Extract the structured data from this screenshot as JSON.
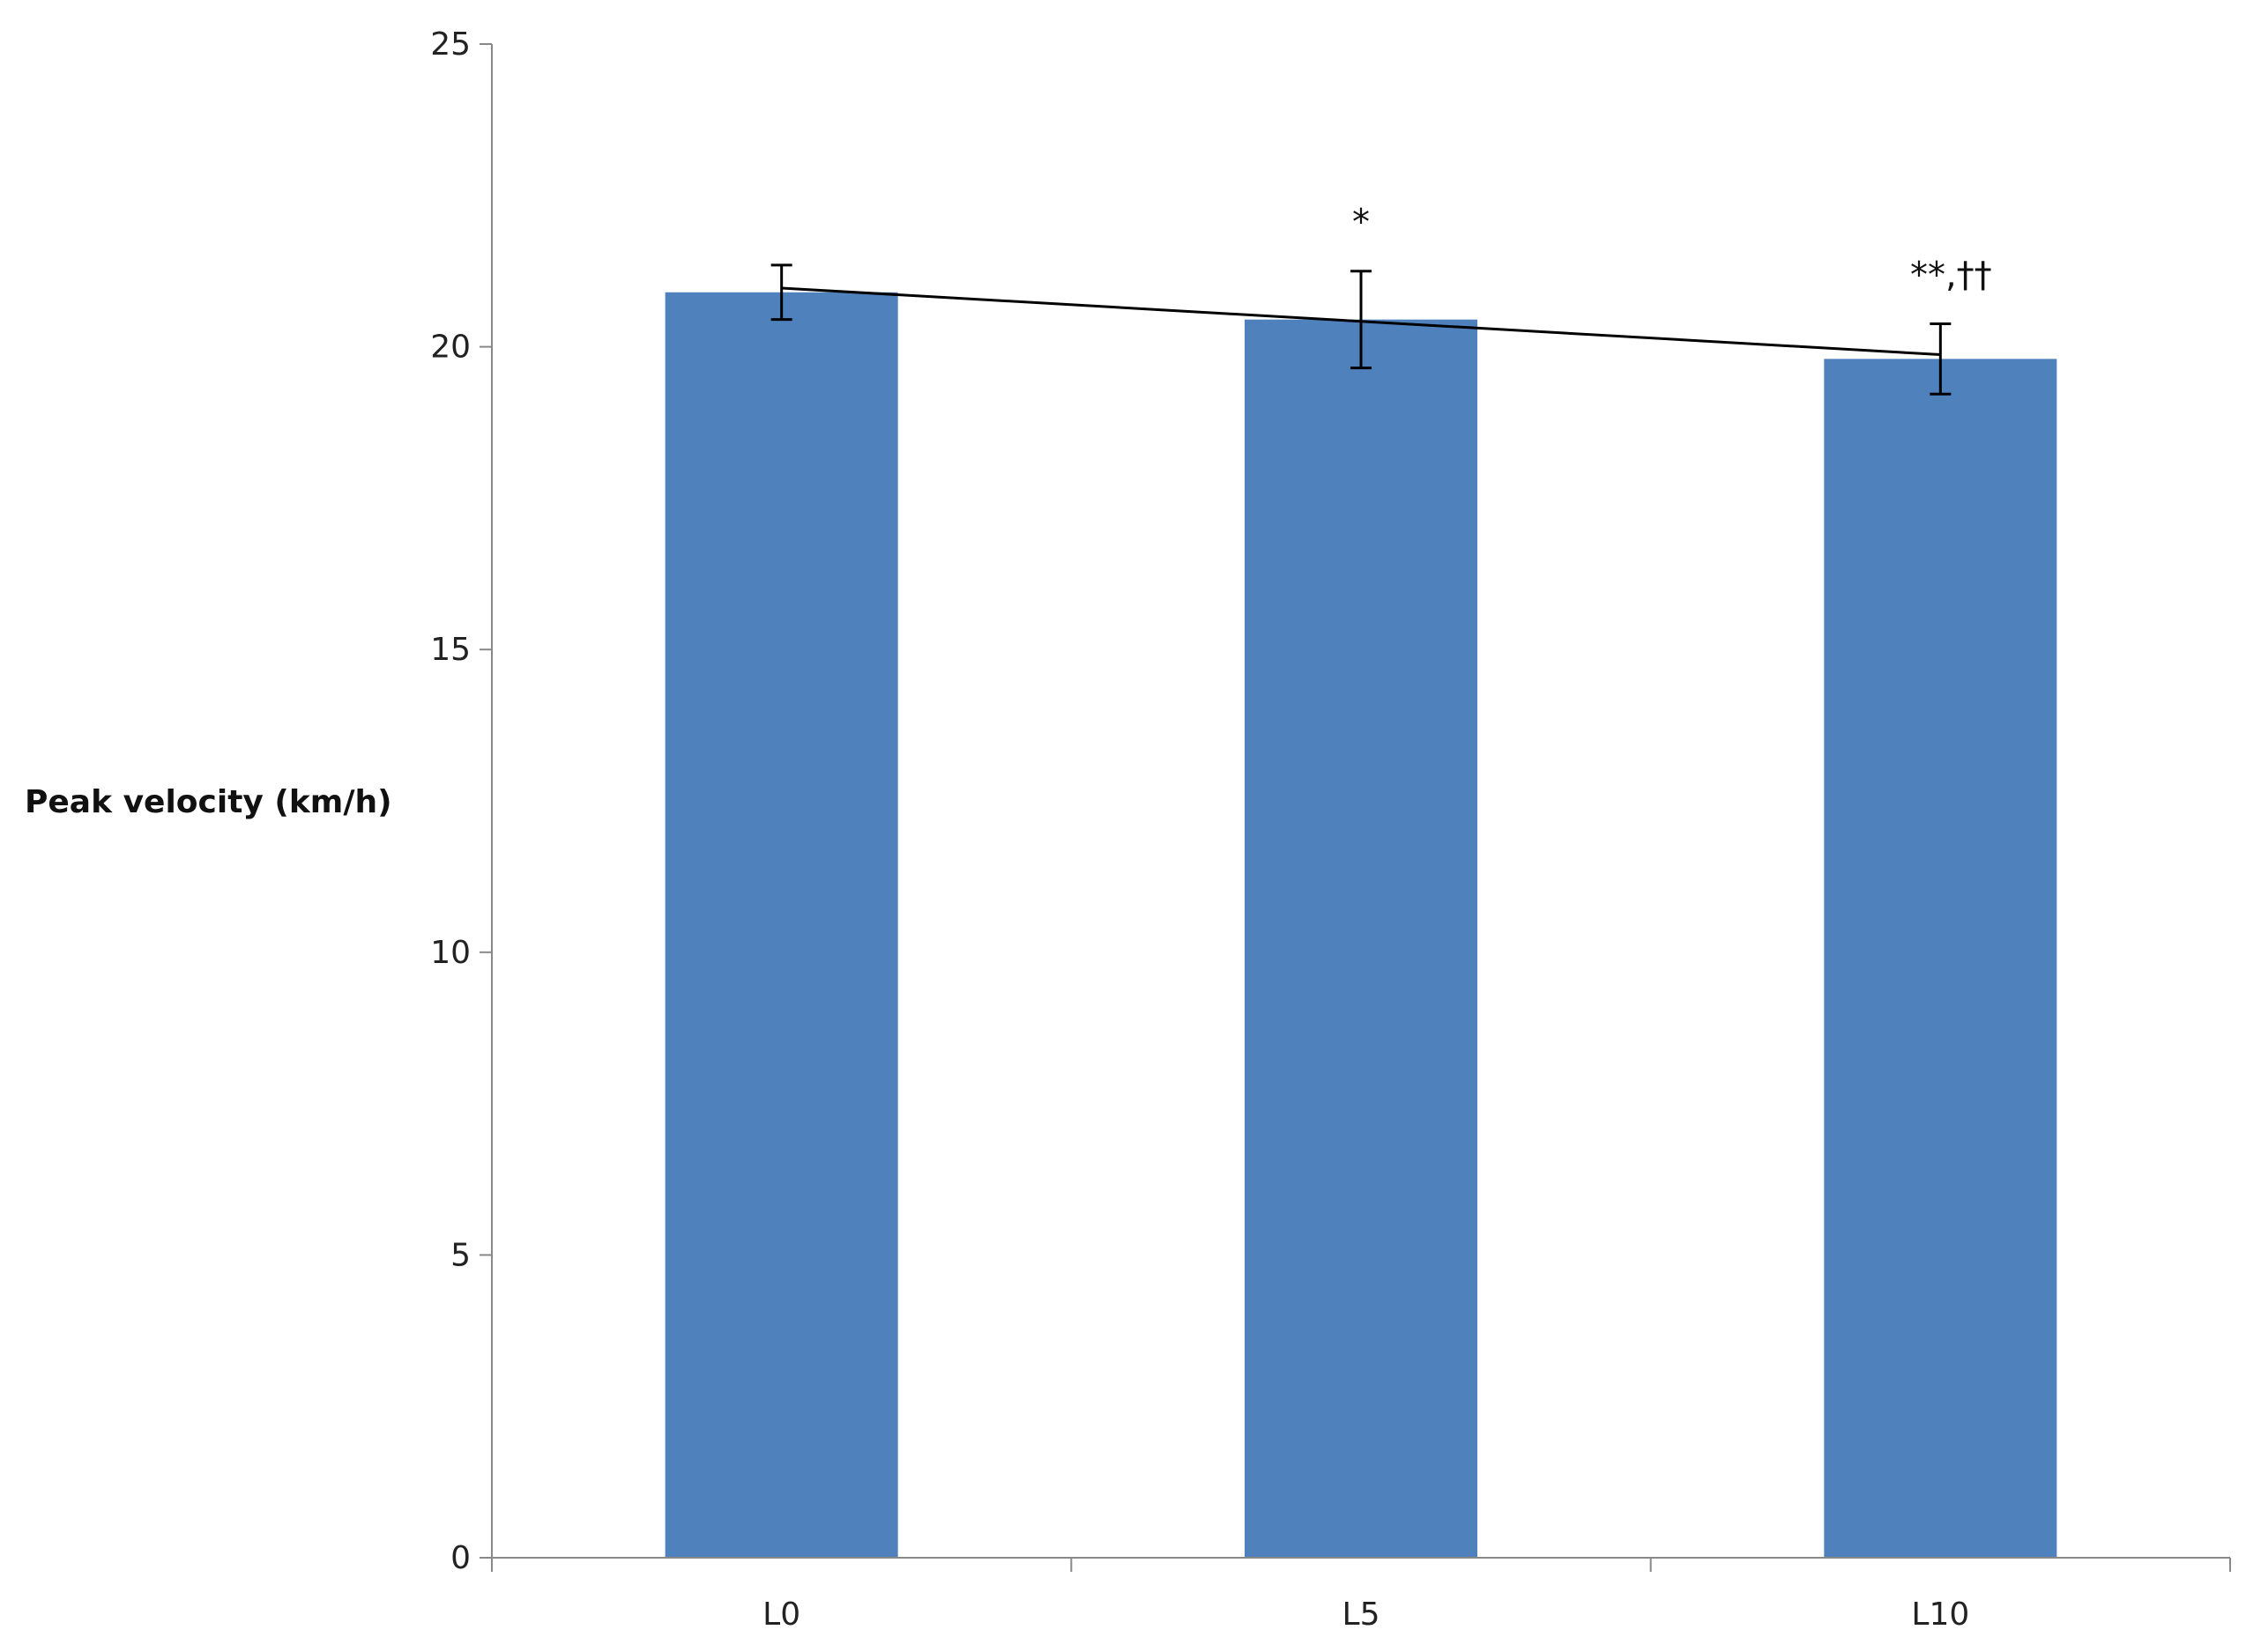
{
  "chart_data": {
    "type": "bar",
    "title": "",
    "xlabel": "",
    "ylabel": "Peak velocity (km/h)",
    "categories": [
      "L0",
      "L5",
      "L10"
    ],
    "values": [
      20.9,
      20.45,
      19.8
    ],
    "errors": [
      0.45,
      0.8,
      0.58
    ],
    "annotations": [
      "",
      "*",
      "**,††"
    ],
    "trendline": {
      "start": 20.97,
      "end": 19.87
    },
    "ylim": [
      0,
      25
    ],
    "yticks": [
      0,
      5,
      10,
      15,
      20,
      25
    ],
    "grid": false,
    "legend": "none",
    "colors": {
      "bar": "#4f81bd",
      "axis": "#888888",
      "error": "#000000",
      "trend": "#000000"
    }
  }
}
